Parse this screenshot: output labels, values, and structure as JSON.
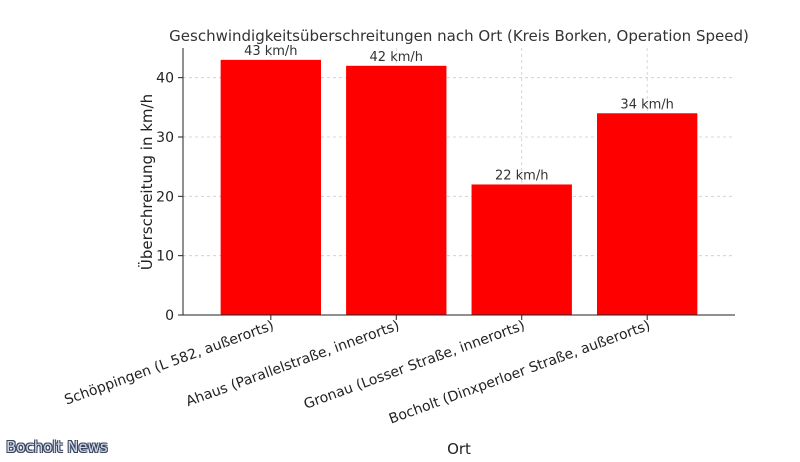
{
  "chart_data": {
    "type": "bar",
    "title": "Geschwindigkeitsüberschreitungen nach Ort (Kreis Borken, Operation Speed)",
    "xlabel": "Ort",
    "ylabel": "Überschreitung in km/h",
    "categories": [
      "Schöppingen (L 582, außerorts)",
      "Ahaus (Parallelstraße, innerorts)",
      "Gronau (Losser Straße, innerorts)",
      "Bocholt (Dinxperloer Straße, außerorts)"
    ],
    "values": [
      43,
      42,
      22,
      34
    ],
    "data_labels": [
      "43 km/h",
      "42 km/h",
      "22 km/h",
      "34 km/h"
    ],
    "yticks": [
      0,
      10,
      20,
      30,
      40
    ],
    "ylim": [
      0,
      45
    ],
    "grid": true,
    "bar_color": "#ff0000"
  },
  "watermark": "Bocholt News"
}
